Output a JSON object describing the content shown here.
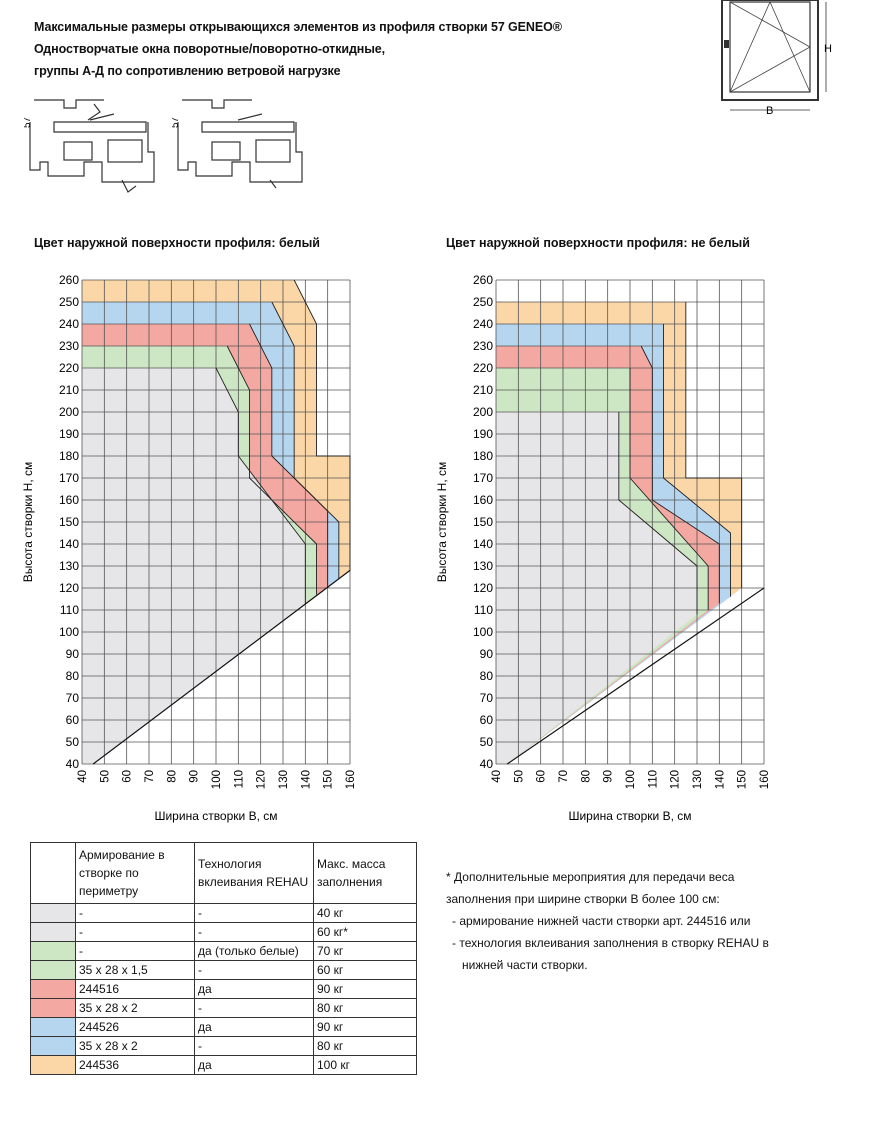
{
  "header": {
    "line1": "Максимальные размеры открывающихся элементов из профиля створки 57 GENEO®",
    "line2": "Одностворчатые окна поворотные/поворотно-откидные,",
    "line3": "группы А-Д по сопротивлению ветровой нагрузке"
  },
  "diagram": {
    "dim_h": "H",
    "dim_b": "B",
    "profile_dim": "57"
  },
  "colors": {
    "gray": "#e6e6e8",
    "green": "#cde6c4",
    "red": "#f3a8a2",
    "blue": "#b6d6f0",
    "orange": "#fbd6a6"
  },
  "chart_data": [
    {
      "type": "area",
      "title": "Цвет наружной поверхности профиля: белый",
      "xlabel": "Ширина створки B, см",
      "ylabel": "Высота створки H, см",
      "x_ticks": [
        "40",
        "50",
        "60",
        "70",
        "80",
        "90",
        "100",
        "110",
        "120",
        "130",
        "140",
        "150",
        "160"
      ],
      "y_ticks": [
        "260",
        "250",
        "240",
        "230",
        "220",
        "210",
        "200",
        "190",
        "180",
        "170",
        "160",
        "150",
        "140",
        "130",
        "120",
        "110",
        "100",
        "90",
        "80",
        "70",
        "60",
        "50",
        "40"
      ],
      "xlim": [
        40,
        160
      ],
      "ylim": [
        40,
        260
      ],
      "grid": true,
      "series": [
        {
          "color": "orange",
          "points": [
            [
              40,
              260
            ],
            [
              135,
              260
            ],
            [
              145,
              240
            ],
            [
              145,
              180
            ],
            [
              160,
              180
            ],
            [
              160,
              128
            ]
          ]
        },
        {
          "color": "blue",
          "points": [
            [
              40,
              250
            ],
            [
              125,
              250
            ],
            [
              135,
              230
            ],
            [
              135,
              170
            ],
            [
              155,
              150
            ],
            [
              155,
              124
            ]
          ]
        },
        {
          "color": "red",
          "points": [
            [
              40,
              240
            ],
            [
              115,
              240
            ],
            [
              125,
              220
            ],
            [
              125,
              180
            ],
            [
              150,
              155
            ],
            [
              150,
              120
            ]
          ]
        },
        {
          "color": "green",
          "points": [
            [
              40,
              230
            ],
            [
              105,
              230
            ],
            [
              115,
              210
            ],
            [
              115,
              170
            ],
            [
              145,
              140
            ],
            [
              145,
              117
            ]
          ]
        },
        {
          "color": "gray",
          "points": [
            [
              40,
              220
            ],
            [
              100,
              220
            ],
            [
              110,
              200
            ],
            [
              110,
              180
            ],
            [
              140,
              140
            ],
            [
              140,
              113
            ]
          ]
        }
      ]
    },
    {
      "type": "area",
      "title": "Цвет наружной поверхности профиля: не белый",
      "xlabel": "Ширина створки B, см",
      "ylabel": "Высота створки H, см",
      "x_ticks": [
        "40",
        "50",
        "60",
        "70",
        "80",
        "90",
        "100",
        "110",
        "120",
        "130",
        "140",
        "150",
        "160"
      ],
      "y_ticks": [
        "260",
        "250",
        "240",
        "230",
        "220",
        "210",
        "200",
        "190",
        "180",
        "170",
        "160",
        "150",
        "140",
        "130",
        "120",
        "110",
        "100",
        "90",
        "80",
        "70",
        "60",
        "50",
        "40"
      ],
      "xlim": [
        40,
        160
      ],
      "ylim": [
        40,
        260
      ],
      "grid": true,
      "series": [
        {
          "color": "orange",
          "points": [
            [
              40,
              250
            ],
            [
              125,
              250
            ],
            [
              125,
              170
            ],
            [
              150,
              170
            ],
            [
              150,
              120
            ]
          ]
        },
        {
          "color": "blue",
          "points": [
            [
              40,
              240
            ],
            [
              115,
              240
            ],
            [
              115,
              170
            ],
            [
              145,
              145
            ],
            [
              145,
              116
            ]
          ]
        },
        {
          "color": "red",
          "points": [
            [
              40,
              230
            ],
            [
              105,
              230
            ],
            [
              110,
              220
            ],
            [
              110,
              160
            ],
            [
              140,
              140
            ],
            [
              140,
              113
            ]
          ]
        },
        {
          "color": "green",
          "points": [
            [
              40,
              220
            ],
            [
              100,
              220
            ],
            [
              100,
              170
            ],
            [
              135,
              130
            ],
            [
              135,
              110
            ]
          ]
        },
        {
          "color": "gray",
          "points": [
            [
              40,
              200
            ],
            [
              95,
              200
            ],
            [
              95,
              160
            ],
            [
              130,
              130
            ],
            [
              130,
              108
            ]
          ]
        }
      ]
    }
  ],
  "legend_table": {
    "headers": [
      "Армирование в створке по периметру",
      "Технология вклеивания REHAU",
      "Макс. масса заполнения"
    ],
    "rows": [
      {
        "color": "gray",
        "reinf": "-",
        "reinf2": "",
        "tech": "-",
        "mass": "40 кг"
      },
      {
        "color": "gray",
        "reinf": "-",
        "reinf2": "",
        "tech": "-",
        "mass": "60 кг*"
      },
      {
        "color": "green",
        "reinf": "-",
        "reinf2": "",
        "tech": "да (только белые)",
        "mass": "70 кг"
      },
      {
        "color": "green",
        "reinf": "35 x 28 x 1,5",
        "reinf2": "",
        "tech": "-",
        "mass": "60 кг"
      },
      {
        "color": "red",
        "reinf": "244516",
        "reinf2": "",
        "tech": "да",
        "mass": "90 кг"
      },
      {
        "color": "red",
        "reinf": "35 x 28 x 2",
        "reinf2": "",
        "tech": "-",
        "mass": "80 кг"
      },
      {
        "color": "blue",
        "reinf": "244526",
        "reinf2": "",
        "tech": "да",
        "mass": "90 кг"
      },
      {
        "color": "blue",
        "reinf": "35 x 28 x 2",
        "reinf2": "",
        "tech": "-",
        "mass": "80 кг"
      },
      {
        "color": "orange",
        "reinf": "244536",
        "reinf2": "",
        "tech": "да",
        "mass": "100 кг"
      }
    ]
  },
  "note": {
    "line1": "* Дополнительные мероприятия для передачи веса",
    "line2": "заполнения при ширине створки B более 100 см:",
    "line3": "- армирование нижней части створки арт. 244516 или",
    "line4": "- технология вклеивания заполнения в створку REHAU в",
    "line5": "нижней части створки."
  }
}
